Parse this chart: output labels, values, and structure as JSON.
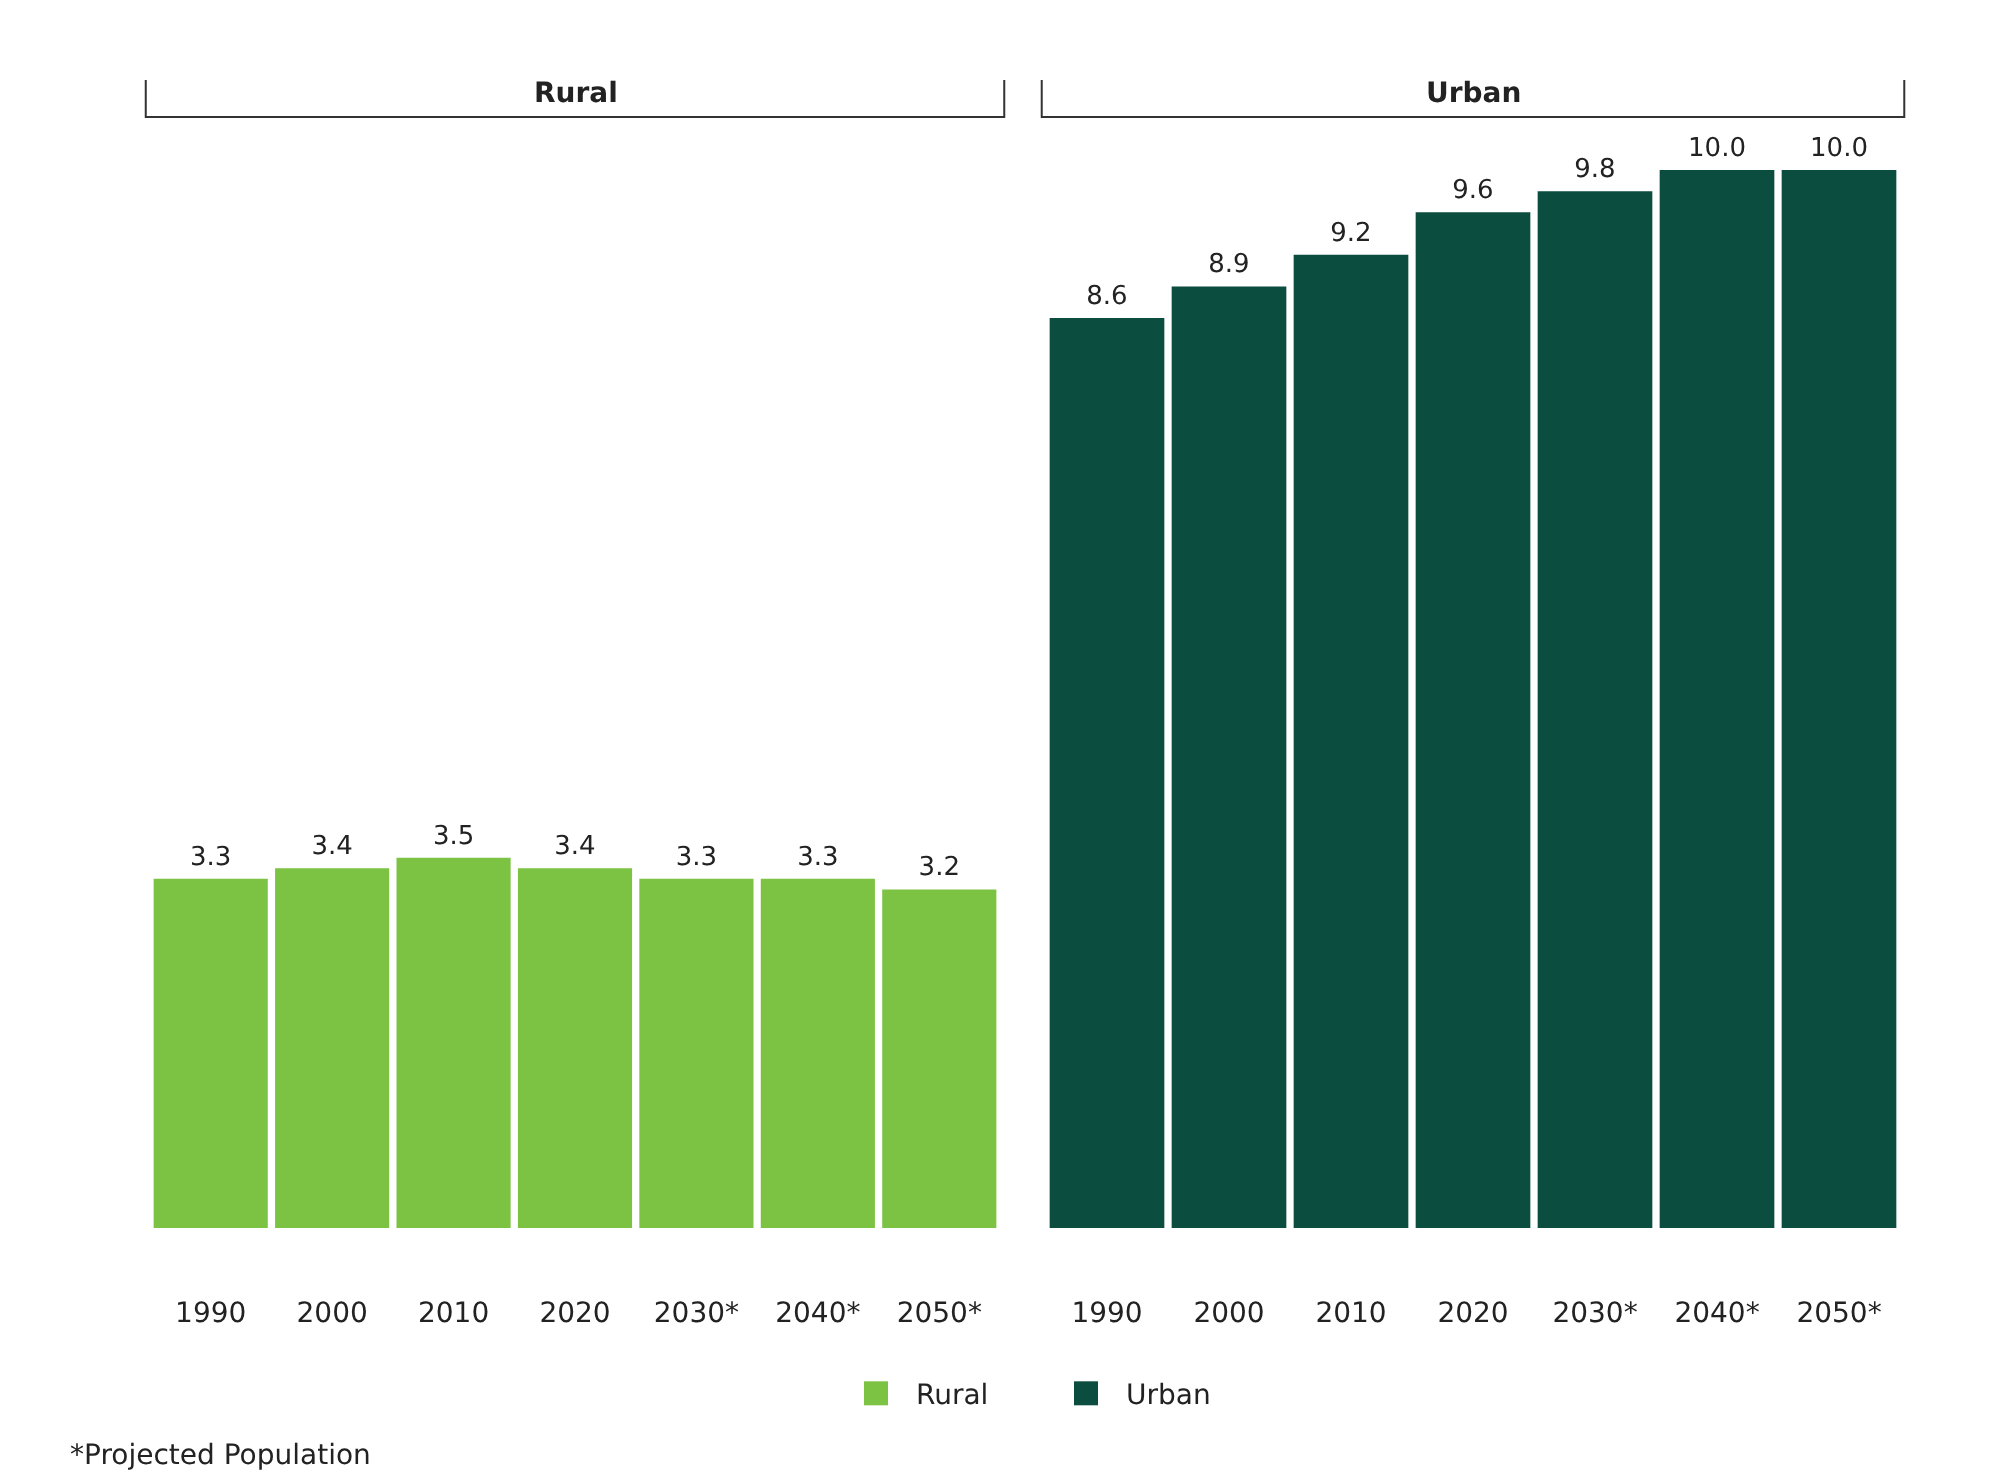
{
  "chart_data": [
    {
      "type": "bar",
      "title": "Rural",
      "categories": [
        "1990",
        "2000",
        "2010",
        "2020",
        "2030*",
        "2040*",
        "2050*"
      ],
      "series": [
        {
          "name": "Rural",
          "color": "#7cc243",
          "values": [
            3.3,
            3.4,
            3.5,
            3.4,
            3.3,
            3.3,
            3.2
          ],
          "value_labels": [
            "3.3",
            "3.4",
            "3.5",
            "3.4",
            "3.3",
            "3.3",
            "3.2"
          ]
        }
      ],
      "tick_labels": "x",
      "legend": "bottom",
      "annotations": [
        "*Projected Population"
      ]
    },
    {
      "type": "bar",
      "title": "Urban",
      "categories": [
        "1990",
        "2000",
        "2010",
        "2020",
        "2030*",
        "2040*",
        "2050*"
      ],
      "series": [
        {
          "name": "Urban",
          "color": "#0b4d3e",
          "values": [
            8.6,
            8.9,
            9.2,
            9.6,
            9.8,
            10.0,
            10.0
          ],
          "value_labels": [
            "8.6",
            "8.9",
            "9.2",
            "9.6",
            "9.8",
            "10.0",
            "10.0"
          ]
        }
      ],
      "tick_labels": "x",
      "legend": "bottom"
    }
  ]
}
